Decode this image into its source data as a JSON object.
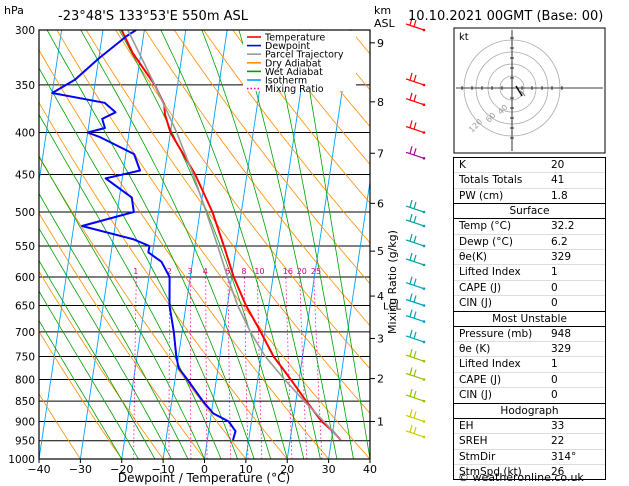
{
  "header": {
    "hpa_label": "hPa",
    "location": "-23°48'S 133°53'E 550m ASL",
    "km_label": "km",
    "asl_label": "ASL",
    "datetime": "10.10.2021 00GMT (Base: 00)"
  },
  "legend": {
    "items": [
      {
        "label": "Temperature",
        "color": "#ff0000",
        "style": "solid"
      },
      {
        "label": "Dewpoint",
        "color": "#0000ff",
        "style": "solid"
      },
      {
        "label": "Parcel Trajectory",
        "color": "#999999",
        "style": "solid"
      },
      {
        "label": "Dry Adiabat",
        "color": "#ff8c00",
        "style": "solid"
      },
      {
        "label": "Wet Adiabat",
        "color": "#00a000",
        "style": "solid"
      },
      {
        "label": "Isotherm",
        "color": "#00a0ff",
        "style": "solid"
      },
      {
        "label": "Mixing Ratio",
        "color": "#ff00aa",
        "style": "dotted"
      }
    ]
  },
  "chart_data": {
    "type": "line",
    "title": "",
    "xlabel": "Dewpoint / Temperature (°C)",
    "ylabel": "Mixing Ratio (g/kg)",
    "xlim": [
      -40,
      40
    ],
    "ylim": [
      1000,
      300
    ],
    "y_scale": "log (pressure)",
    "x_ticks": [
      "−40",
      "−30",
      "−20",
      "−10",
      "0",
      "10",
      "20",
      "30",
      "40"
    ],
    "pressure_ticks": [
      300,
      350,
      400,
      450,
      500,
      550,
      600,
      650,
      700,
      750,
      800,
      850,
      900,
      950,
      1000
    ],
    "km_ticks": [
      {
        "label": "9",
        "p": 311
      },
      {
        "label": "8",
        "p": 367
      },
      {
        "label": "7",
        "p": 424
      },
      {
        "label": "6",
        "p": 488
      },
      {
        "label": "5",
        "p": 558
      },
      {
        "label": "4",
        "p": 633
      },
      {
        "label": "3",
        "p": 713
      },
      {
        "label": "2",
        "p": 798
      },
      {
        "label": "1",
        "p": 900
      }
    ],
    "lcl": {
      "label": "LCL",
      "p": 650
    },
    "mixing_ratio_labels": [
      "1",
      "2",
      "3",
      "4",
      "6",
      "8",
      "10",
      "16",
      "20",
      "25"
    ],
    "series": [
      {
        "name": "Temperature",
        "color": "#ff0000",
        "points": [
          [
            948,
            32.2
          ],
          [
            925,
            30.0
          ],
          [
            900,
            27.0
          ],
          [
            850,
            22.5
          ],
          [
            800,
            18.0
          ],
          [
            750,
            13.0
          ],
          [
            700,
            9.0
          ],
          [
            650,
            4.5
          ],
          [
            600,
            0.5
          ],
          [
            550,
            -3.0
          ],
          [
            500,
            -7.0
          ],
          [
            450,
            -12.5
          ],
          [
            400,
            -20.0
          ],
          [
            380,
            -22.0
          ],
          [
            370,
            -22.5
          ],
          [
            350,
            -25.5
          ],
          [
            320,
            -32.0
          ],
          [
            300,
            -35.5
          ]
        ]
      },
      {
        "name": "Dewpoint",
        "color": "#0000ff",
        "points": [
          [
            948,
            6.2
          ],
          [
            925,
            6.5
          ],
          [
            900,
            4.5
          ],
          [
            880,
            0.5
          ],
          [
            850,
            -2.5
          ],
          [
            800,
            -7.0
          ],
          [
            775,
            -9.5
          ],
          [
            750,
            -10.5
          ],
          [
            700,
            -12.0
          ],
          [
            650,
            -14.0
          ],
          [
            600,
            -15.0
          ],
          [
            575,
            -17.5
          ],
          [
            560,
            -21.0
          ],
          [
            550,
            -21.0
          ],
          [
            540,
            -25.0
          ],
          [
            520,
            -38.0
          ],
          [
            500,
            -26.0
          ],
          [
            480,
            -27.0
          ],
          [
            455,
            -34.0
          ],
          [
            445,
            -26.0
          ],
          [
            425,
            -28.0
          ],
          [
            405,
            -37.0
          ],
          [
            400,
            -40.0
          ],
          [
            395,
            -36.0
          ],
          [
            385,
            -37.0
          ],
          [
            378,
            -34.0
          ],
          [
            368,
            -37.0
          ],
          [
            358,
            -50.0
          ],
          [
            345,
            -45.0
          ],
          [
            325,
            -40.0
          ],
          [
            305,
            -34.0
          ],
          [
            300,
            -32.0
          ]
        ]
      },
      {
        "name": "Parcel Trajectory",
        "color": "#999999",
        "points": [
          [
            948,
            32.2
          ],
          [
            900,
            27.5
          ],
          [
            850,
            22.0
          ],
          [
            800,
            16.5
          ],
          [
            750,
            11.0
          ],
          [
            700,
            6.5
          ],
          [
            650,
            2.5
          ],
          [
            600,
            -1.0
          ],
          [
            550,
            -4.5
          ],
          [
            500,
            -8.5
          ],
          [
            450,
            -13.0
          ],
          [
            400,
            -18.5
          ],
          [
            350,
            -25.5
          ],
          [
            300,
            -34.0
          ]
        ]
      }
    ]
  },
  "indices": {
    "rows": [
      {
        "label": "K",
        "value": "20"
      },
      {
        "label": "Totals Totals",
        "value": "41"
      },
      {
        "label": "PW (cm)",
        "value": "1.8"
      }
    ],
    "surface": {
      "title": "Surface",
      "rows": [
        {
          "label": "Temp (°C)",
          "value": "32.2"
        },
        {
          "label": "Dewp (°C)",
          "value": "6.2"
        },
        {
          "label": "θe(K)",
          "value": "329"
        },
        {
          "label": "Lifted Index",
          "value": "1"
        },
        {
          "label": "CAPE (J)",
          "value": "0"
        },
        {
          "label": "CIN (J)",
          "value": "0"
        }
      ]
    },
    "most_unstable": {
      "title": "Most Unstable",
      "rows": [
        {
          "label": "Pressure (mb)",
          "value": "948"
        },
        {
          "label": "θe (K)",
          "value": "329"
        },
        {
          "label": "Lifted Index",
          "value": "1"
        },
        {
          "label": "CAPE (J)",
          "value": "0"
        },
        {
          "label": "CIN (J)",
          "value": "0"
        }
      ]
    },
    "hodograph": {
      "title": "Hodograph",
      "rows": [
        {
          "label": "EH",
          "value": "33"
        },
        {
          "label": "SREH",
          "value": "22"
        },
        {
          "label": "StmDir",
          "value": "314°"
        },
        {
          "label": "StmSpd (kt)",
          "value": "26"
        }
      ]
    }
  },
  "hodograph_panel": {
    "unit_label": "kt",
    "ring_labels": [
      "40",
      "60",
      "120"
    ]
  },
  "credit": "© weatheronline.co.uk"
}
